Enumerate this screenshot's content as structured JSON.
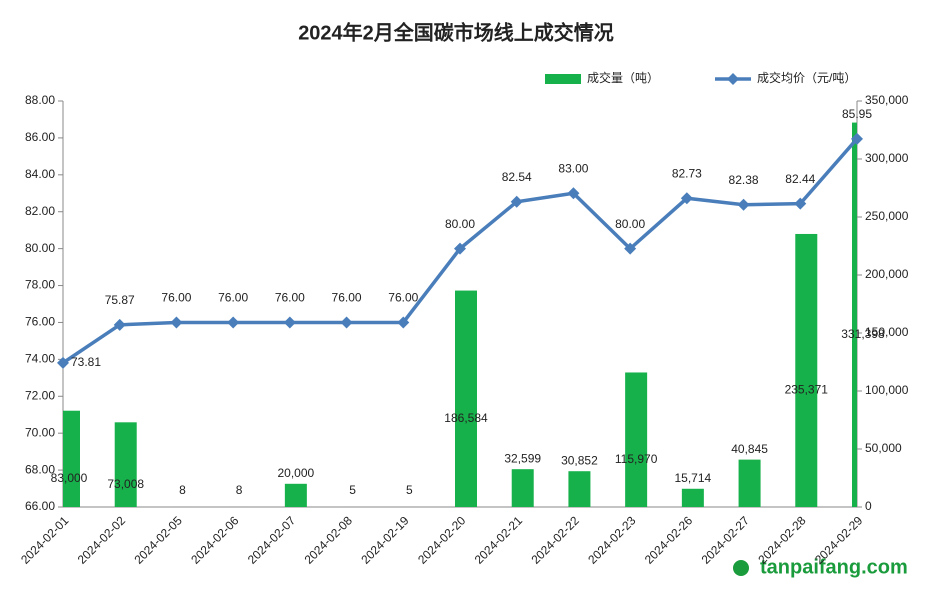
{
  "chart_data": {
    "type": "combo",
    "title": "2024年2月全国碳市场线上成交情况",
    "categories": [
      "2024-02-01",
      "2024-02-02",
      "2024-02-05",
      "2024-02-06",
      "2024-02-07",
      "2024-02-08",
      "2024-02-19",
      "2024-02-20",
      "2024-02-21",
      "2024-02-22",
      "2024-02-23",
      "2024-02-26",
      "2024-02-27",
      "2024-02-28",
      "2024-02-29"
    ],
    "series": [
      {
        "name": "成交量（吨）",
        "type": "bar",
        "color": "#16b14a",
        "axis": "y2",
        "values": [
          83000,
          73008,
          8,
          8,
          20000,
          5,
          5,
          186584,
          32599,
          30852,
          115970,
          15714,
          40845,
          235371,
          331398
        ],
        "value_labels": [
          "83,000",
          "73,008",
          "8",
          "8",
          "20,000",
          "5",
          "5",
          "186,584",
          "32,599",
          "30,852",
          "115,970",
          "15,714",
          "40,845",
          "235,371",
          "331,398"
        ]
      },
      {
        "name": "成交均价（元/吨）",
        "type": "line",
        "color": "#4a7ebb",
        "values": [
          73.81,
          75.87,
          76,
          76,
          76,
          76,
          76,
          80,
          82.54,
          83,
          80,
          82.73,
          82.38,
          82.44,
          85.95
        ],
        "value_labels": [
          "73.81",
          "75.87",
          "76.00",
          "76.00",
          "76.00",
          "76.00",
          "76.00",
          "80.00",
          "82.54",
          "83.00",
          "80.00",
          "82.73",
          "82.38",
          "82.44",
          "85.95"
        ]
      }
    ],
    "ylim": [
      66,
      88
    ],
    "yticks": [
      {
        "value": 66,
        "label": "66.00"
      },
      {
        "value": 68,
        "label": "68.00"
      },
      {
        "value": 70,
        "label": "70.00"
      },
      {
        "value": 72,
        "label": "72.00"
      },
      {
        "value": 74,
        "label": "74.00"
      },
      {
        "value": 76,
        "label": "76.00"
      },
      {
        "value": 78,
        "label": "78.00"
      },
      {
        "value": 80,
        "label": "80.00"
      },
      {
        "value": 82,
        "label": "82.00"
      },
      {
        "value": 84,
        "label": "84.00"
      },
      {
        "value": 86,
        "label": "86.00"
      },
      {
        "value": 88,
        "label": "88.00"
      }
    ],
    "y2lim": [
      0,
      350000
    ],
    "y2ticks": [
      0,
      {
        "value": 50000,
        "label": "50,000"
      },
      {
        "value": 100000,
        "label": "100,000"
      },
      {
        "value": 150000,
        "label": "150,000"
      },
      {
        "value": 200000,
        "label": "200,000"
      },
      {
        "value": 250000,
        "label": "250,000"
      },
      {
        "value": 300000,
        "label": "300,000"
      },
      {
        "value": 350000,
        "label": "350,000"
      }
    ],
    "legend": "top-right",
    "watermark": "tanpaifang.com"
  }
}
